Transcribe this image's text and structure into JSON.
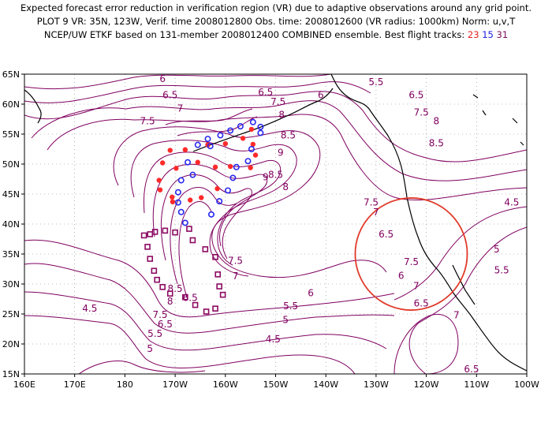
{
  "header": {
    "line1": "Expected forecast error reduction in verification region (VR) due to adaptive observations around any grid point.",
    "line2": "PLOT 9 VR: 35N, 123W, Verif. time 2008012800 Obs. time: 2008012600 (VR radius: 1000km) Norm: u,v,T",
    "line3_prefix": "NCEP/UW ETKF based on 131-member 2008012400 COMBINED ensemble.  Best flight tracks: ",
    "track_red": "23",
    "track_blue": "15",
    "track_purple": "31"
  },
  "map": {
    "x_ticks": [
      "160E",
      "170E",
      "180",
      "170W",
      "160W",
      "150W",
      "140W",
      "130W",
      "120W",
      "110W",
      "100W"
    ],
    "y_ticks": [
      "65N",
      "60N",
      "55N",
      "50N",
      "45N",
      "40N",
      "35N",
      "30N",
      "25N",
      "20N",
      "15N"
    ],
    "contour_labels": [
      {
        "text": "6",
        "lon": -172.5,
        "lat": 64.2
      },
      {
        "text": "6.5",
        "lon": -171,
        "lat": 61.5
      },
      {
        "text": "7",
        "lon": -169,
        "lat": 59.3
      },
      {
        "text": "7.5",
        "lon": -175.5,
        "lat": 57.2
      },
      {
        "text": "6.5",
        "lon": -152,
        "lat": 62
      },
      {
        "text": "6",
        "lon": -141,
        "lat": 61.5
      },
      {
        "text": "5.5",
        "lon": -130,
        "lat": 63.7
      },
      {
        "text": "6.5",
        "lon": -122,
        "lat": 61.5
      },
      {
        "text": "7.5",
        "lon": -121,
        "lat": 58.6
      },
      {
        "text": "8",
        "lon": -118,
        "lat": 57.2
      },
      {
        "text": "8.5",
        "lon": -118,
        "lat": 53.5
      },
      {
        "text": "7.5",
        "lon": -149.5,
        "lat": 60.4
      },
      {
        "text": "8",
        "lon": -148.8,
        "lat": 58.2
      },
      {
        "text": "8.5",
        "lon": -147.5,
        "lat": 54.8
      },
      {
        "text": "9",
        "lon": -149,
        "lat": 51.9
      },
      {
        "text": "9",
        "lon": -152,
        "lat": 47.8
      },
      {
        "text": "8.5",
        "lon": -150,
        "lat": 48.2
      },
      {
        "text": "8",
        "lon": -148,
        "lat": 46.2
      },
      {
        "text": "7.5",
        "lon": -131,
        "lat": 43.6
      },
      {
        "text": "7",
        "lon": -130,
        "lat": 42
      },
      {
        "text": "6.5",
        "lon": -128,
        "lat": 38.3
      },
      {
        "text": "6",
        "lon": -125,
        "lat": 31.4
      },
      {
        "text": "7.5",
        "lon": -158,
        "lat": 33.9
      },
      {
        "text": "7",
        "lon": -158,
        "lat": 31.3
      },
      {
        "text": "6.5",
        "lon": -167,
        "lat": 27.7
      },
      {
        "text": "8.5",
        "lon": -170,
        "lat": 29.2
      },
      {
        "text": "8",
        "lon": -171,
        "lat": 27.1
      },
      {
        "text": "7.5",
        "lon": -173,
        "lat": 24.9
      },
      {
        "text": "6.5",
        "lon": -172,
        "lat": 23.3
      },
      {
        "text": "5.5",
        "lon": -174,
        "lat": 21.7
      },
      {
        "text": "5",
        "lon": -175,
        "lat": 19.2
      },
      {
        "text": "4.5",
        "lon": -187,
        "lat": 25.9
      },
      {
        "text": "5.5",
        "lon": -147,
        "lat": 26.3
      },
      {
        "text": "5",
        "lon": -148,
        "lat": 24
      },
      {
        "text": "4.5",
        "lon": -150.5,
        "lat": 20.8
      },
      {
        "text": "6",
        "lon": -143,
        "lat": 28.5
      },
      {
        "text": "7.5",
        "lon": -123,
        "lat": 33.7
      },
      {
        "text": "7",
        "lon": -122,
        "lat": 29.7
      },
      {
        "text": "6.5",
        "lon": -121,
        "lat": 26.8
      },
      {
        "text": "7",
        "lon": -114,
        "lat": 24.8
      },
      {
        "text": "6.5",
        "lon": -111,
        "lat": 15.8
      },
      {
        "text": "5",
        "lon": -106,
        "lat": 35.8
      },
      {
        "text": "5.5",
        "lon": -105,
        "lat": 32.3
      },
      {
        "text": "4.5",
        "lon": -103,
        "lat": 43.6
      }
    ],
    "verification_circle": {
      "lon": -123,
      "lat": 35,
      "radius_deg": 11.5
    },
    "track_red_points": [
      {
        "lon": -171,
        "lat": 52.3
      },
      {
        "lon": -168,
        "lat": 52.4
      },
      {
        "lon": -163.5,
        "lat": 53.2
      },
      {
        "lon": -160,
        "lat": 53.4
      },
      {
        "lon": -156.5,
        "lat": 54.3
      },
      {
        "lon": -154.8,
        "lat": 55.8
      },
      {
        "lon": -154.5,
        "lat": 53.3
      },
      {
        "lon": -154,
        "lat": 51.5
      },
      {
        "lon": -155,
        "lat": 49.4
      },
      {
        "lon": -159,
        "lat": 49.6
      },
      {
        "lon": -162,
        "lat": 49.5
      },
      {
        "lon": -165.5,
        "lat": 50.3
      },
      {
        "lon": -169.8,
        "lat": 49.3
      },
      {
        "lon": -172.5,
        "lat": 50.2
      },
      {
        "lon": -173.2,
        "lat": 47.3
      },
      {
        "lon": -173,
        "lat": 45.7
      },
      {
        "lon": -170.6,
        "lat": 44.5
      },
      {
        "lon": -167,
        "lat": 44
      },
      {
        "lon": -161.6,
        "lat": 45.9
      },
      {
        "lon": -164.8,
        "lat": 44.4
      },
      {
        "lon": -170.5,
        "lat": 43.7
      }
    ],
    "track_blue_points": [
      {
        "lon": -165.5,
        "lat": 53.2
      },
      {
        "lon": -163.5,
        "lat": 54.2
      },
      {
        "lon": -163,
        "lat": 53
      },
      {
        "lon": -161,
        "lat": 54.8
      },
      {
        "lon": -159,
        "lat": 55.6
      },
      {
        "lon": -157,
        "lat": 56.3
      },
      {
        "lon": -154.5,
        "lat": 57
      },
      {
        "lon": -153,
        "lat": 56.2
      },
      {
        "lon": -153,
        "lat": 55.2
      },
      {
        "lon": -154.8,
        "lat": 52.5
      },
      {
        "lon": -155.5,
        "lat": 50.5
      },
      {
        "lon": -157.8,
        "lat": 49.5
      },
      {
        "lon": -158.5,
        "lat": 47.7
      },
      {
        "lon": -159.5,
        "lat": 45.6
      },
      {
        "lon": -161.2,
        "lat": 43.8
      },
      {
        "lon": -162.8,
        "lat": 41.6
      },
      {
        "lon": -166.5,
        "lat": 48.2
      },
      {
        "lon": -167.5,
        "lat": 50.3
      },
      {
        "lon": -168.8,
        "lat": 47.3
      },
      {
        "lon": -169.4,
        "lat": 45.3
      },
      {
        "lon": -169.4,
        "lat": 43.6
      },
      {
        "lon": -168.8,
        "lat": 42
      },
      {
        "lon": -168,
        "lat": 40.2
      }
    ],
    "track_purple_points": [
      {
        "lon": -175,
        "lat": 38.3
      },
      {
        "lon": -174,
        "lat": 38.7
      },
      {
        "lon": -172,
        "lat": 38.9
      },
      {
        "lon": -170,
        "lat": 38.6
      },
      {
        "lon": -167.2,
        "lat": 39.2
      },
      {
        "lon": -166.5,
        "lat": 37.3
      },
      {
        "lon": -164,
        "lat": 35.8
      },
      {
        "lon": -162,
        "lat": 34.5
      },
      {
        "lon": -161.5,
        "lat": 31.6
      },
      {
        "lon": -161.2,
        "lat": 29.6
      },
      {
        "lon": -160.5,
        "lat": 28.2
      },
      {
        "lon": -162,
        "lat": 25.9
      },
      {
        "lon": -163.8,
        "lat": 25.4
      },
      {
        "lon": -166,
        "lat": 26.5
      },
      {
        "lon": -168,
        "lat": 27.8
      },
      {
        "lon": -171,
        "lat": 28.4
      },
      {
        "lon": -172.5,
        "lat": 29.5
      },
      {
        "lon": -173.6,
        "lat": 30.7
      },
      {
        "lon": -174.2,
        "lat": 32.2
      },
      {
        "lon": -175,
        "lat": 34.2
      },
      {
        "lon": -175.5,
        "lat": 36.2
      },
      {
        "lon": -176.2,
        "lat": 38.1
      }
    ],
    "colors": {
      "contour": "#800060",
      "red": "#ff2a2a",
      "blue": "#2828ee",
      "purple": "#8c0a62",
      "circle": "#e03a2a",
      "coast": "#000000",
      "grid": "#808080"
    }
  }
}
